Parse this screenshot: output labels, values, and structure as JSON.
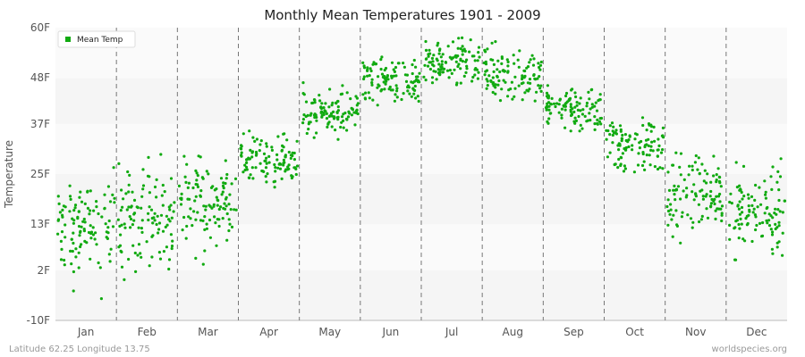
{
  "chart_data": {
    "type": "scatter",
    "title": "Monthly Mean Temperatures 1901 - 2009",
    "xlabel": "",
    "ylabel": "Temperature",
    "categories": [
      "Jan",
      "Feb",
      "Mar",
      "Apr",
      "May",
      "Jun",
      "Jul",
      "Aug",
      "Sep",
      "Oct",
      "Nov",
      "Dec"
    ],
    "yticks": [
      "-10F",
      "2F",
      "13F",
      "25F",
      "37F",
      "48F",
      "60F"
    ],
    "ylim": [
      -10,
      60
    ],
    "grid": true,
    "legend_position": "top-left",
    "series": [
      {
        "name": "Mean Temp",
        "color": "#11aa11",
        "points_per_month": 109,
        "monthly_mean": [
          12.0,
          14.0,
          18.5,
          28.5,
          39.0,
          47.5,
          51.5,
          49.0,
          40.5,
          32.0,
          20.5,
          16.0
        ],
        "monthly_spread": [
          22,
          22,
          18,
          10,
          10,
          10,
          9,
          9,
          9,
          12,
          15,
          18
        ]
      }
    ]
  },
  "footer": {
    "left": "Latitude 62.25 Longitude 13.75",
    "right": "worldspecies.org"
  }
}
